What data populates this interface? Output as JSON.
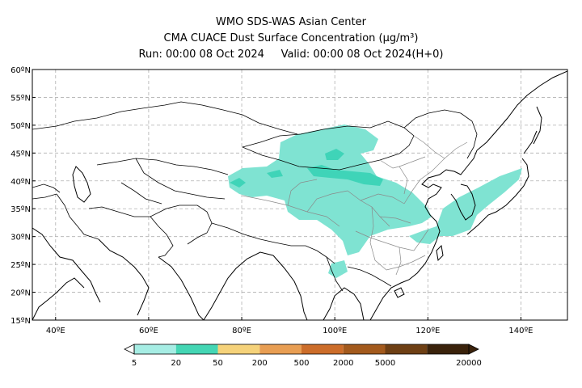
{
  "header": {
    "title": "WMO SDS-WAS Asian Center",
    "subtitle": "CMA CUACE Dust Surface Concentration (μg/m³)",
    "run_info": "Run: 00:00 08 Oct 2024     Valid: 00:00 08 Oct 2024(H+0)"
  },
  "map": {
    "lat_ticks": [
      "60ºN",
      "55ºN",
      "50ºN",
      "45ºN",
      "40ºN",
      "35ºN",
      "30ºN",
      "25ºN",
      "20ºN",
      "15ºN"
    ],
    "lon_ticks": [
      "40ºE",
      "60ºE",
      "80ºE",
      "100ºE",
      "120ºE",
      "140ºE"
    ],
    "dust_color": "#7fe3d2",
    "dust_dark_color": "#3fd4b8"
  },
  "colorbar": {
    "labels": [
      "5",
      "20",
      "50",
      "200",
      "500",
      "2000",
      "5000",
      "20000"
    ],
    "colors": [
      "#a6ede4",
      "#44d6b4",
      "#f5d27a",
      "#e89e53",
      "#cc6d2a",
      "#a35a1d",
      "#6e3f14",
      "#3a220b"
    ]
  }
}
